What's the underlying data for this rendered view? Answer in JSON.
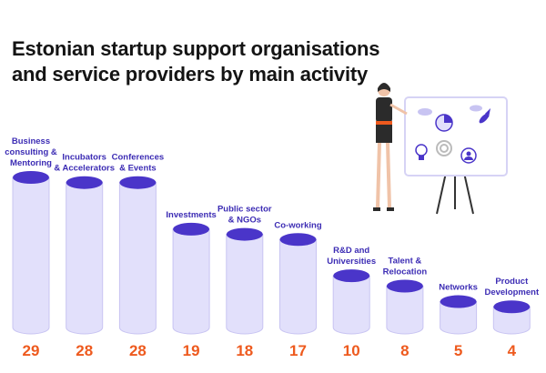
{
  "title": "Estonian startup support organisations and service providers by main activity",
  "colors": {
    "cylinder_body": "#e2e0fb",
    "cylinder_outline": "#c8c4f2",
    "cylinder_top": "#4a35c9",
    "value_text": "#ee5a1e",
    "label_text": "#3c2cb4"
  },
  "illustration": {
    "icons": [
      "person-icon",
      "easel-icon",
      "pie-chart-icon",
      "rocket-icon",
      "lightbulb-icon",
      "target-icon",
      "user-icon",
      "cloud-icon"
    ]
  },
  "chart_data": {
    "type": "bar",
    "style": "cylinder",
    "categories": [
      [
        "Business",
        "consulting &",
        "Mentoring"
      ],
      [
        "Incubators",
        "& Accelerators"
      ],
      [
        "Conferences",
        "& Events"
      ],
      [
        "Investments"
      ],
      [
        "Public sector",
        "& NGOs"
      ],
      [
        "Co-working"
      ],
      [
        "R&D and",
        "Universities"
      ],
      [
        "Talent &",
        "Relocation"
      ],
      [
        "Networks"
      ],
      [
        "Product",
        "Development"
      ]
    ],
    "values": [
      29,
      28,
      28,
      19,
      18,
      17,
      10,
      8,
      5,
      4
    ],
    "grid": false,
    "legend": "none"
  }
}
